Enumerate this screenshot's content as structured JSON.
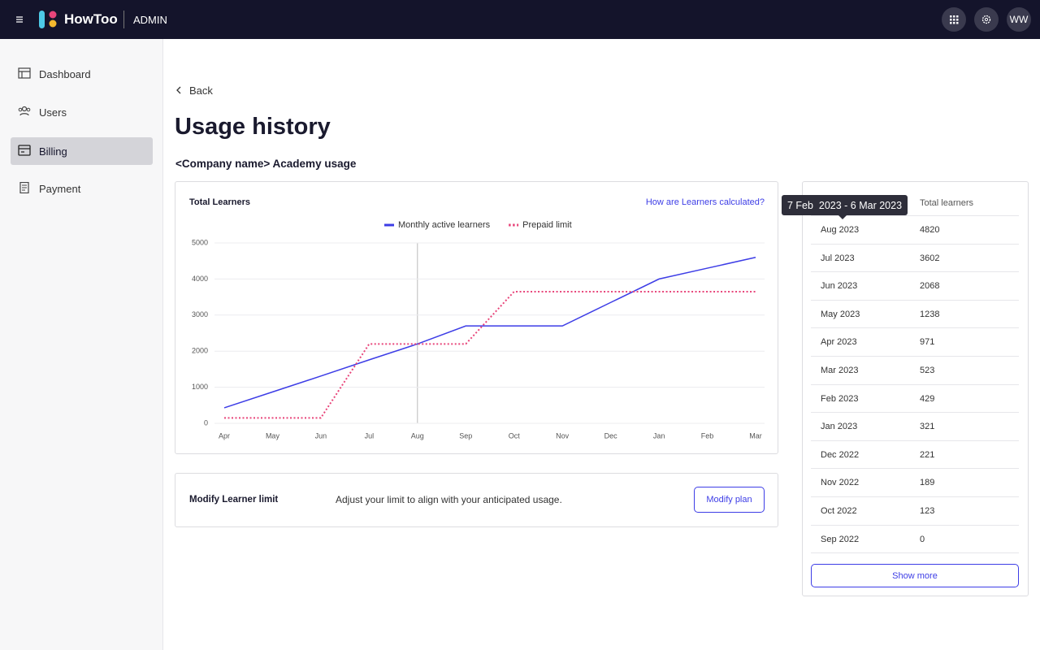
{
  "header": {
    "brand": "HowToo",
    "section": "ADMIN",
    "avatar": "WW"
  },
  "sidebar": {
    "items": [
      "Dashboard",
      "Users",
      "Billing",
      "Payment"
    ]
  },
  "page": {
    "back": "Back",
    "title": "Usage history",
    "subtitle": "<Company name> Academy usage"
  },
  "chart_data": {
    "type": "line",
    "title": "Total Learners",
    "link": "How are Learners calculated?",
    "categories": [
      "Apr",
      "May",
      "Jun",
      "Jul",
      "Aug",
      "Sep",
      "Oct",
      "Nov",
      "Dec",
      "Jan",
      "Feb",
      "Mar"
    ],
    "series": [
      {
        "name": "Monthly active learners",
        "color": "#3d3de6",
        "values": [
          430,
          870,
          1310,
          1760,
          2200,
          2700,
          2700,
          2700,
          3350,
          4000,
          4300,
          4600
        ]
      },
      {
        "name": "Prepaid limit",
        "color": "#e8457a",
        "dash": "dotted",
        "values": [
          150,
          150,
          150,
          2200,
          2200,
          2200,
          3650,
          3650,
          3650,
          3650,
          3650,
          3650
        ]
      }
    ],
    "ylim": [
      0,
      5000
    ],
    "yticks": [
      0,
      1000,
      2000,
      3000,
      4000,
      5000
    ],
    "grid": true,
    "legend": "top"
  },
  "table": {
    "header": "Total learners",
    "tooltip": "7 Feb  2023 - 6 Mar 2023",
    "rows": [
      [
        "Aug 2023",
        4820
      ],
      [
        "Jul 2023",
        3602
      ],
      [
        "Jun 2023",
        2068
      ],
      [
        "May 2023",
        1238
      ],
      [
        "Apr 2023",
        971
      ],
      [
        "Mar 2023",
        523
      ],
      [
        "Feb 2023",
        429
      ],
      [
        "Jan 2023",
        321
      ],
      [
        "Dec 2022",
        221
      ],
      [
        "Nov 2022",
        189
      ],
      [
        "Oct 2022",
        123
      ],
      [
        "Sep 2022",
        0
      ]
    ],
    "button": "Show more"
  },
  "limit": {
    "title": "Modify Learner limit",
    "text": "Adjust your limit to align with your anticipated usage.",
    "button": "Modify plan"
  }
}
